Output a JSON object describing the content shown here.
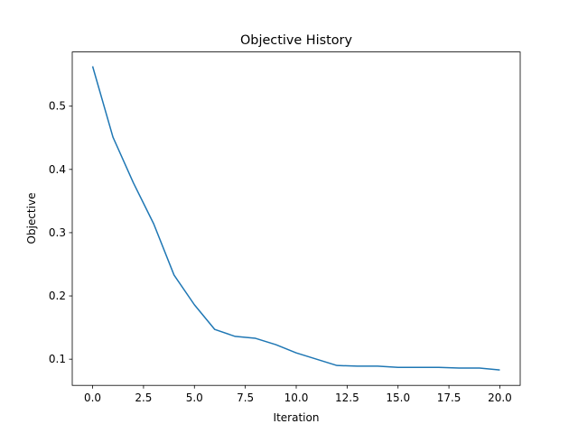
{
  "chart_data": {
    "type": "line",
    "title": "Objective History",
    "x_label": "Iteration",
    "y_label": "Objective",
    "x": [
      0,
      1,
      2,
      3,
      4,
      5,
      6,
      7,
      8,
      9,
      10,
      11,
      12,
      13,
      14,
      15,
      16,
      17,
      18,
      19,
      20
    ],
    "series": [
      {
        "name": "Objective",
        "color": "#1f77b4",
        "values": [
          0.563,
          0.451,
          0.379,
          0.314,
          0.233,
          0.186,
          0.147,
          0.136,
          0.133,
          0.123,
          0.11,
          0.1,
          0.09,
          0.089,
          0.089,
          0.087,
          0.087,
          0.087,
          0.086,
          0.086,
          0.083
        ]
      }
    ],
    "xlim": [
      -1,
      21
    ],
    "xticks": [
      {
        "value": 0,
        "label": "0.0"
      },
      {
        "value": 2.5,
        "label": "2.5"
      },
      {
        "value": 5,
        "label": "5.0"
      },
      {
        "value": 7.5,
        "label": "7.5"
      },
      {
        "value": 10,
        "label": "10.0"
      },
      {
        "value": 12.5,
        "label": "12.5"
      },
      {
        "value": 15,
        "label": "15.0"
      },
      {
        "value": 17.5,
        "label": "17.5"
      },
      {
        "value": 20,
        "label": "20.0"
      }
    ],
    "ylim": [
      0.0586,
      0.5857
    ],
    "yticks": [
      0.1,
      0.2,
      0.3,
      0.4,
      0.5
    ],
    "grid": false,
    "legend": false
  }
}
